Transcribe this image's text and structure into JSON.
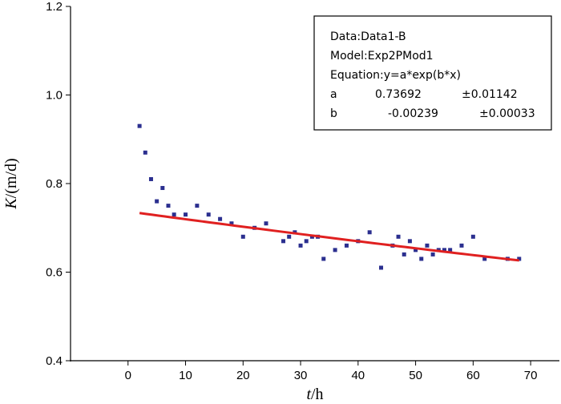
{
  "chart_data": {
    "type": "scatter",
    "title": "",
    "xlabel_var": "t",
    "xlabel_unit": "/h",
    "ylabel_var": "K",
    "ylabel_unit": "/(m/d)",
    "xlim": [
      -10,
      75
    ],
    "ylim": [
      0.4,
      1.2
    ],
    "xticks": [
      0,
      10,
      20,
      30,
      40,
      50,
      60,
      70
    ],
    "yticks": [
      0.4,
      0.6,
      0.8,
      1.0,
      1.2
    ],
    "xtick_labels": [
      "0",
      "10",
      "20",
      "30",
      "40",
      "50",
      "60",
      "70"
    ],
    "ytick_labels": [
      "0.4",
      "0.6",
      "0.8",
      "1.0",
      "1.2"
    ],
    "grid": false,
    "series": [
      {
        "name": "Data1-B",
        "type": "scatter",
        "color": "#2b2f8f",
        "points": [
          [
            2,
            0.93
          ],
          [
            3,
            0.87
          ],
          [
            4,
            0.81
          ],
          [
            5,
            0.76
          ],
          [
            6,
            0.79
          ],
          [
            7,
            0.75
          ],
          [
            8,
            0.73
          ],
          [
            10,
            0.73
          ],
          [
            12,
            0.75
          ],
          [
            14,
            0.73
          ],
          [
            16,
            0.72
          ],
          [
            18,
            0.71
          ],
          [
            20,
            0.68
          ],
          [
            22,
            0.7
          ],
          [
            24,
            0.71
          ],
          [
            27,
            0.67
          ],
          [
            28,
            0.68
          ],
          [
            29,
            0.69
          ],
          [
            30,
            0.66
          ],
          [
            31,
            0.67
          ],
          [
            32,
            0.68
          ],
          [
            33,
            0.68
          ],
          [
            34,
            0.63
          ],
          [
            36,
            0.65
          ],
          [
            38,
            0.66
          ],
          [
            40,
            0.67
          ],
          [
            42,
            0.69
          ],
          [
            44,
            0.61
          ],
          [
            46,
            0.66
          ],
          [
            47,
            0.68
          ],
          [
            48,
            0.64
          ],
          [
            49,
            0.67
          ],
          [
            50,
            0.65
          ],
          [
            51,
            0.63
          ],
          [
            52,
            0.66
          ],
          [
            53,
            0.64
          ],
          [
            54,
            0.65
          ],
          [
            55,
            0.65
          ],
          [
            56,
            0.65
          ],
          [
            58,
            0.66
          ],
          [
            60,
            0.68
          ],
          [
            62,
            0.63
          ],
          [
            66,
            0.63
          ],
          [
            68,
            0.63
          ]
        ]
      },
      {
        "name": "Exp2PMod1 fit",
        "type": "line",
        "color": "#e02020",
        "model": "exp",
        "a": 0.73692,
        "b": -0.00239,
        "x_range": [
          2,
          68
        ]
      }
    ],
    "legend": {
      "placement": "top-right",
      "lines": [
        "Data:Data1-B",
        "Model:Exp2PMod1",
        "Equation:y=a*exp(b*x)"
      ],
      "params": [
        {
          "name": "a",
          "value": "0.73692",
          "error": "±0.01142"
        },
        {
          "name": "b",
          "value": "-0.00239",
          "error": "±0.00033"
        }
      ]
    }
  }
}
